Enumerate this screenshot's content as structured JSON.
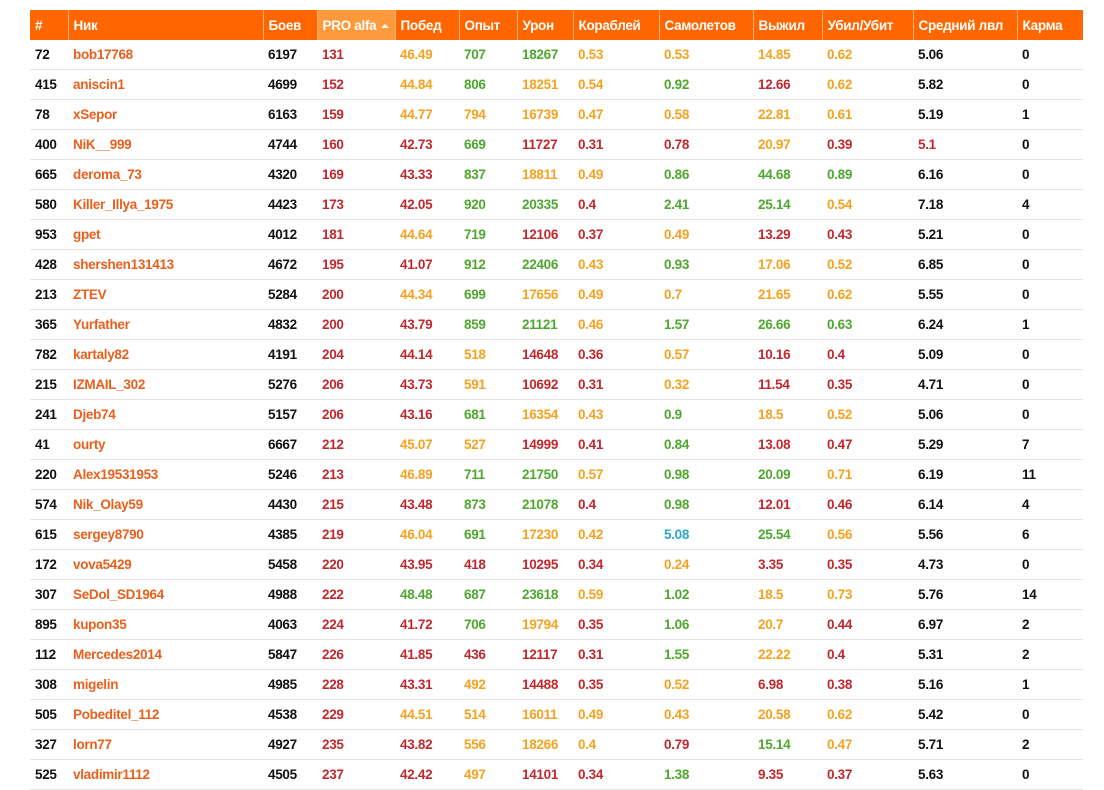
{
  "table": {
    "header": [
      "#",
      "Ник",
      "Боев",
      "PRO alfa",
      "Побед",
      "Опыт",
      "Урон",
      "Кораблей",
      "Самолетов",
      "Выжил",
      "Убил/Убит",
      "Средний лвл",
      "Карма"
    ],
    "sorted_column": 3,
    "palette": {
      "k": "#111111",
      "n": "#e8601c",
      "r": "#c0282d",
      "o": "#f4a21f",
      "g": "#4ea72e",
      "t": "#2aa9c9"
    },
    "rows": [
      [
        "72",
        "bob17768",
        "6197",
        "131",
        "46.49",
        "707",
        "18267",
        "0.53",
        "0.53",
        "14.85",
        "0.62",
        "5.06",
        "0"
      ],
      [
        "415",
        "aniscin1",
        "4699",
        "152",
        "44.84",
        "806",
        "18251",
        "0.54",
        "0.92",
        "12.66",
        "0.62",
        "5.82",
        "0"
      ],
      [
        "78",
        "xSepor",
        "6163",
        "159",
        "44.77",
        "794",
        "16739",
        "0.47",
        "0.58",
        "22.81",
        "0.61",
        "5.19",
        "1"
      ],
      [
        "400",
        "NiK__999",
        "4744",
        "160",
        "42.73",
        "669",
        "11727",
        "0.31",
        "0.78",
        "20.97",
        "0.39",
        "5.1",
        "0"
      ],
      [
        "665",
        "deroma_73",
        "4320",
        "169",
        "43.33",
        "837",
        "18811",
        "0.49",
        "0.86",
        "44.68",
        "0.89",
        "6.16",
        "0"
      ],
      [
        "580",
        "Killer_Illya_1975",
        "4423",
        "173",
        "42.05",
        "920",
        "20335",
        "0.4",
        "2.41",
        "25.14",
        "0.54",
        "7.18",
        "4"
      ],
      [
        "953",
        "gpet",
        "4012",
        "181",
        "44.64",
        "719",
        "12106",
        "0.37",
        "0.49",
        "13.29",
        "0.43",
        "5.21",
        "0"
      ],
      [
        "428",
        "shershen131413",
        "4672",
        "195",
        "41.07",
        "912",
        "22406",
        "0.43",
        "0.93",
        "17.06",
        "0.52",
        "6.85",
        "0"
      ],
      [
        "213",
        "ZTEV",
        "5284",
        "200",
        "44.34",
        "699",
        "17656",
        "0.49",
        "0.7",
        "21.65",
        "0.62",
        "5.55",
        "0"
      ],
      [
        "365",
        "Yurfather",
        "4832",
        "200",
        "43.79",
        "859",
        "21121",
        "0.46",
        "1.57",
        "26.66",
        "0.63",
        "6.24",
        "1"
      ],
      [
        "782",
        "kartaly82",
        "4191",
        "204",
        "44.14",
        "518",
        "14648",
        "0.36",
        "0.57",
        "10.16",
        "0.4",
        "5.09",
        "0"
      ],
      [
        "215",
        "IZMAIL_302",
        "5276",
        "206",
        "43.73",
        "591",
        "10692",
        "0.31",
        "0.32",
        "11.54",
        "0.35",
        "4.71",
        "0"
      ],
      [
        "241",
        "Djeb74",
        "5157",
        "206",
        "43.16",
        "681",
        "16354",
        "0.43",
        "0.9",
        "18.5",
        "0.52",
        "5.06",
        "0"
      ],
      [
        "41",
        "ourty",
        "6667",
        "212",
        "45.07",
        "527",
        "14999",
        "0.41",
        "0.84",
        "13.08",
        "0.47",
        "5.29",
        "7"
      ],
      [
        "220",
        "Alex19531953",
        "5246",
        "213",
        "46.89",
        "711",
        "21750",
        "0.57",
        "0.98",
        "20.09",
        "0.71",
        "6.19",
        "11"
      ],
      [
        "574",
        "Nik_Olay59",
        "4430",
        "215",
        "43.48",
        "873",
        "21078",
        "0.4",
        "0.98",
        "12.01",
        "0.46",
        "6.14",
        "4"
      ],
      [
        "615",
        "sergey8790",
        "4385",
        "219",
        "46.04",
        "691",
        "17230",
        "0.42",
        "5.08",
        "25.54",
        "0.56",
        "5.56",
        "6"
      ],
      [
        "172",
        "vova5429",
        "5458",
        "220",
        "43.95",
        "418",
        "10295",
        "0.34",
        "0.24",
        "3.35",
        "0.35",
        "4.73",
        "0"
      ],
      [
        "307",
        "SeDol_SD1964",
        "4988",
        "222",
        "48.48",
        "687",
        "23618",
        "0.59",
        "1.02",
        "18.5",
        "0.73",
        "5.76",
        "14"
      ],
      [
        "895",
        "kupon35",
        "4063",
        "224",
        "41.72",
        "706",
        "19794",
        "0.35",
        "1.06",
        "20.7",
        "0.44",
        "6.97",
        "2"
      ],
      [
        "112",
        "Mercedes2014",
        "5847",
        "226",
        "41.85",
        "436",
        "12117",
        "0.31",
        "1.55",
        "22.22",
        "0.4",
        "5.31",
        "2"
      ],
      [
        "308",
        "migelin",
        "4985",
        "228",
        "43.31",
        "492",
        "14488",
        "0.35",
        "0.52",
        "6.98",
        "0.38",
        "5.16",
        "1"
      ],
      [
        "505",
        "Pobeditel_112",
        "4538",
        "229",
        "44.51",
        "514",
        "16011",
        "0.49",
        "0.43",
        "20.58",
        "0.62",
        "5.42",
        "0"
      ],
      [
        "327",
        "lorn77",
        "4927",
        "235",
        "43.82",
        "556",
        "18266",
        "0.4",
        "0.79",
        "15.14",
        "0.47",
        "5.71",
        "2"
      ],
      [
        "525",
        "vladimir1112",
        "4505",
        "237",
        "42.42",
        "497",
        "14101",
        "0.34",
        "1.38",
        "9.35",
        "0.37",
        "5.63",
        "0"
      ]
    ],
    "cell_colors": [
      "knkroggooook",
      "knkrogoogrok",
      "knkroooooook",
      "knkrrgrrrorr",
      "knkrrgoogggk",
      "knkrrggrggok",
      "knkrogrrorrk",
      "knkrrggogook",
      "knkrogoooook",
      "knkrrggogggk",
      "knkrrorrorrk",
      "knkrrorrorrk",
      "knkrrgoogook",
      "knkroorrgrrk",
      "knkroggoggok",
      "knkrrggrgrrk",
      "knkrogootgok",
      "knkrrrrrorrk",
      "knkrgggogook",
      "knkrrgorgork",
      "knkrrrrrgorkk",
      "knkrrorrorrk",
      "knkroooooook",
      "knkrrooorgok",
      "knkrrorrgrrk"
    ]
  }
}
